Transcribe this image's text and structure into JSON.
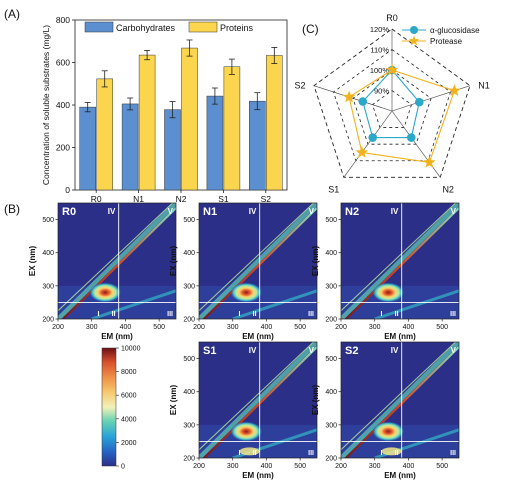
{
  "panels": {
    "a_label": "(A)",
    "b_label": "(B)",
    "c_label": "(C)"
  },
  "chart_data": [
    {
      "type": "bar",
      "panel": "(A)",
      "categories": [
        "R0",
        "N1",
        "N2",
        "S1",
        "S2"
      ],
      "series": [
        {
          "name": "Carbohydrates",
          "values": [
            390,
            405,
            378,
            442,
            418
          ],
          "errors": [
            22,
            28,
            38,
            38,
            40
          ],
          "color": "#5b8fd0"
        },
        {
          "name": "Proteins",
          "values": [
            523,
            635,
            668,
            580,
            633
          ],
          "errors": [
            38,
            22,
            38,
            36,
            38
          ],
          "color": "#fbd54d"
        }
      ],
      "ylabel": "Concentration of soluble substrates (mg/L)",
      "ylim": [
        0,
        800
      ],
      "yticks": [
        0,
        200,
        400,
        600,
        800
      ],
      "legend_position": "top-center"
    },
    {
      "type": "radar",
      "panel": "(C)",
      "axes": [
        "R0",
        "N1",
        "N2",
        "S1",
        "S2"
      ],
      "rlim": [
        80,
        120
      ],
      "ring_labels": [
        "90%",
        "100%",
        "110%",
        "120%"
      ],
      "ring_values": [
        90,
        100,
        110,
        120
      ],
      "series": [
        {
          "name": "α-glucosidase",
          "values": [
            100,
            94,
            96,
            96,
            95
          ],
          "color": "#2aa7c9",
          "marker": "circle"
        },
        {
          "name": "Protease",
          "values": [
            100,
            112,
            111,
            105,
            102
          ],
          "color": "#f2b21c",
          "marker": "star"
        }
      ],
      "legend_position": "top-right"
    },
    {
      "type": "heatmap",
      "panel": "(B)",
      "subplots": [
        "R0",
        "N1",
        "N2",
        "S1",
        "S2"
      ],
      "xlabel": "EM (nm)",
      "ylabel": "EX (nm)",
      "xticks": [
        200,
        300,
        400,
        500
      ],
      "yticks": [
        200,
        300,
        400,
        500
      ],
      "xlim": [
        200,
        550
      ],
      "ylim": [
        200,
        550
      ],
      "region_labels": [
        "I",
        "II",
        "III",
        "IV",
        "V"
      ],
      "region_bounds": {
        "em": 380,
        "ex": 250
      },
      "peak": {
        "em": 340,
        "ex": 280
      },
      "colorbar": {
        "ticks": [
          0,
          2000,
          4000,
          6000,
          8000,
          10000
        ],
        "colors": [
          "#2b2f88",
          "#2563c2",
          "#29a4d8",
          "#66d2b4",
          "#f4f1b7",
          "#f7ca72",
          "#ef9147",
          "#d8502e",
          "#a51e22",
          "#6b0f12"
        ]
      }
    }
  ]
}
